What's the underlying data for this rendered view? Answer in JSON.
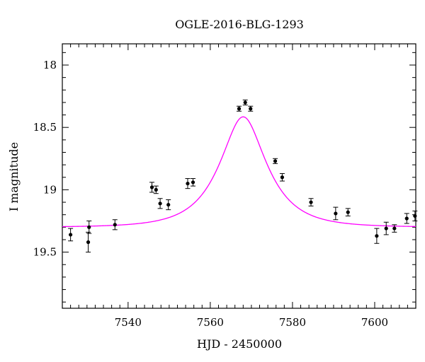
{
  "chart_data": {
    "type": "scatter",
    "title": "OGLE-2016-BLG-1293",
    "xlabel": "HJD - 2450000",
    "ylabel": "I magnitude",
    "xlim": [
      7524,
      7610
    ],
    "ylim": [
      19.95,
      17.83
    ],
    "y_inverted": true,
    "xticks_major": [
      7540,
      7560,
      7580,
      7600
    ],
    "xticks_minor_step": 2,
    "yticks_major": [
      18,
      18.5,
      19,
      19.5
    ],
    "yticks_minor_step": 0.1,
    "grid": false,
    "colors": {
      "data": "#000000",
      "model": "#ff00ff"
    },
    "series": [
      {
        "kind": "points",
        "values": [
          {
            "x": 7526.0,
            "y": 19.36,
            "err": 0.05
          },
          {
            "x": 7530.3,
            "y": 19.42,
            "err": 0.08
          },
          {
            "x": 7530.5,
            "y": 19.3,
            "err": 0.05
          },
          {
            "x": 7536.8,
            "y": 19.28,
            "err": 0.04
          },
          {
            "x": 7545.8,
            "y": 18.98,
            "err": 0.04
          },
          {
            "x": 7546.8,
            "y": 19.0,
            "err": 0.03
          },
          {
            "x": 7547.8,
            "y": 19.11,
            "err": 0.04
          },
          {
            "x": 7549.8,
            "y": 19.12,
            "err": 0.04
          },
          {
            "x": 7554.5,
            "y": 18.95,
            "err": 0.04
          },
          {
            "x": 7555.8,
            "y": 18.94,
            "err": 0.03
          },
          {
            "x": 7567.0,
            "y": 18.35,
            "err": 0.02
          },
          {
            "x": 7568.5,
            "y": 18.3,
            "err": 0.02
          },
          {
            "x": 7569.8,
            "y": 18.35,
            "err": 0.02
          },
          {
            "x": 7575.8,
            "y": 18.77,
            "err": 0.02
          },
          {
            "x": 7577.5,
            "y": 18.9,
            "err": 0.03
          },
          {
            "x": 7584.5,
            "y": 19.1,
            "err": 0.03
          },
          {
            "x": 7590.5,
            "y": 19.19,
            "err": 0.05
          },
          {
            "x": 7593.5,
            "y": 19.18,
            "err": 0.03
          },
          {
            "x": 7600.5,
            "y": 19.37,
            "err": 0.06
          },
          {
            "x": 7602.8,
            "y": 19.31,
            "err": 0.05
          },
          {
            "x": 7604.8,
            "y": 19.31,
            "err": 0.03
          },
          {
            "x": 7607.8,
            "y": 19.23,
            "err": 0.04
          },
          {
            "x": 7609.8,
            "y": 19.21,
            "err": 0.04
          }
        ]
      },
      {
        "kind": "model-curve",
        "model": {
          "t0": 7568.0,
          "tE": 10.0,
          "u0": 0.48,
          "base": 19.3
        }
      }
    ]
  }
}
